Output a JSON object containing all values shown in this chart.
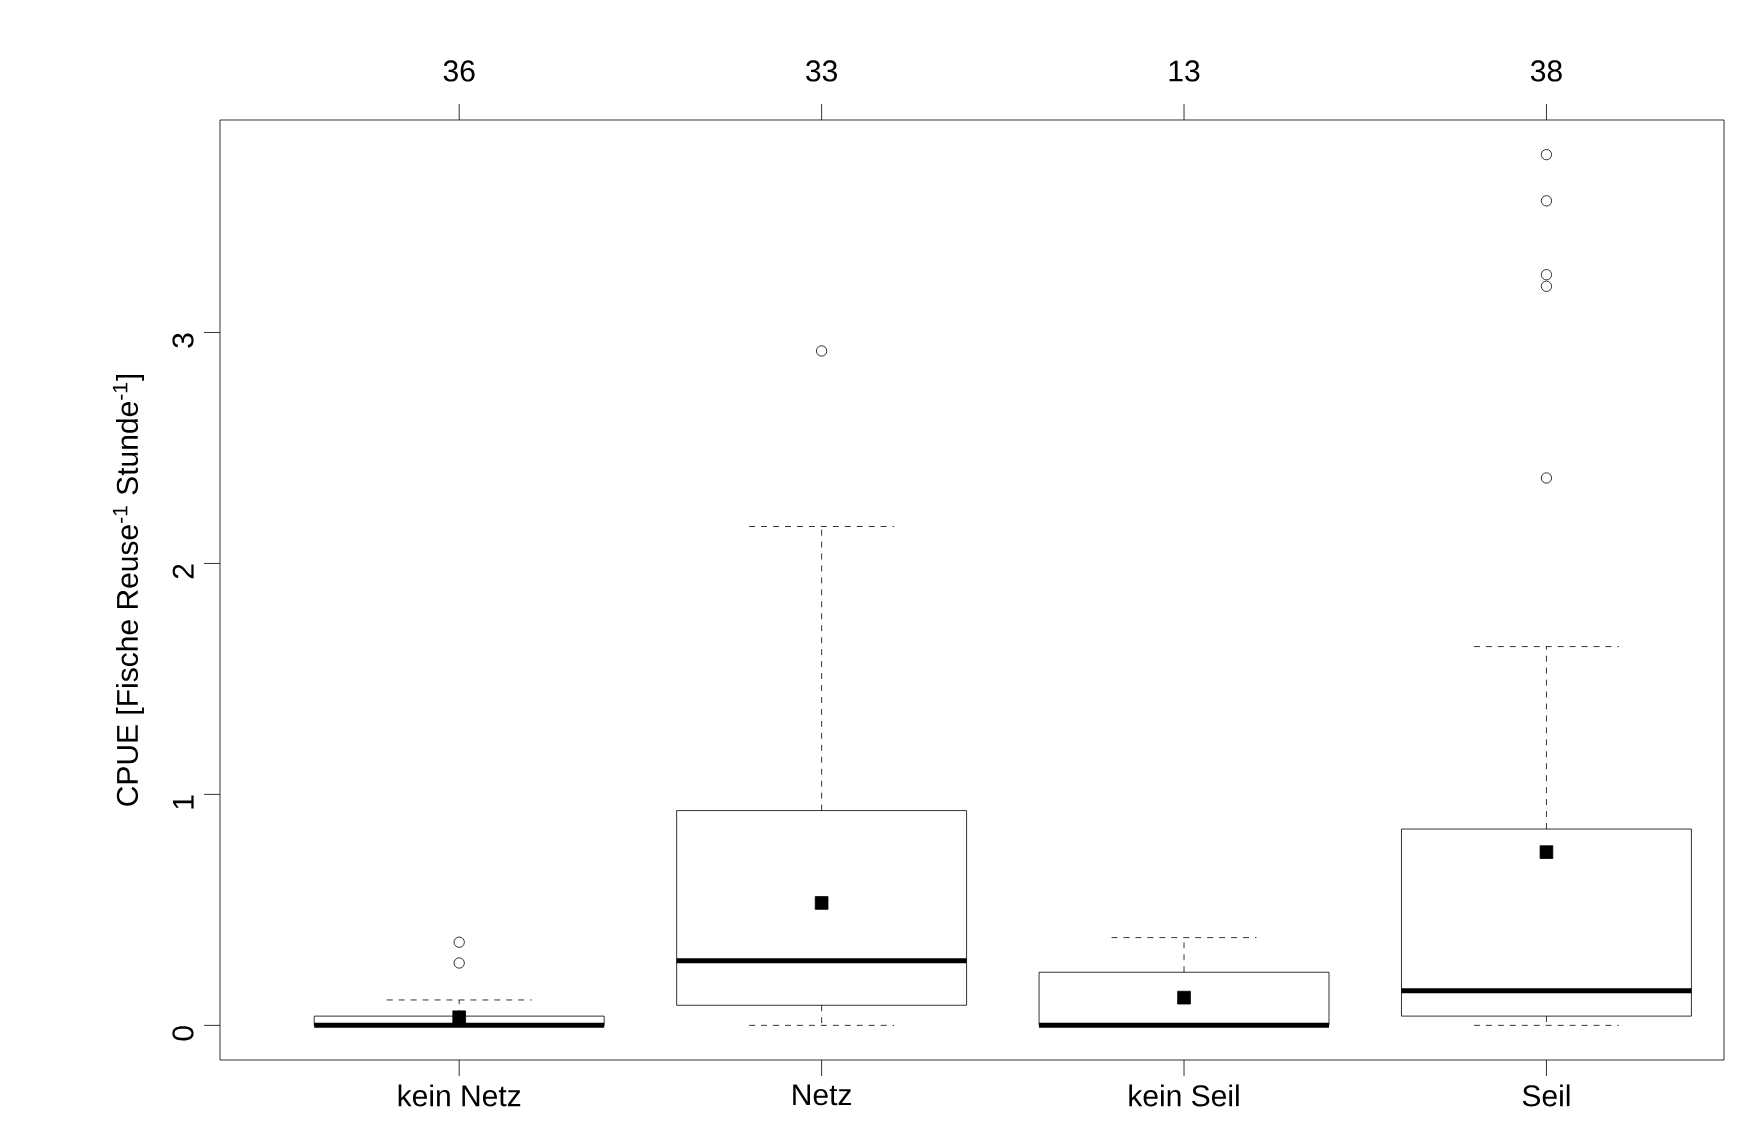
{
  "chart_data": {
    "type": "box",
    "ylabel": "CPUE [Fische Reuse$^{-1}$ Stunde$^{-1}$]",
    "categories": [
      "kein Netz",
      "Netz",
      "kein Seil",
      "Seil"
    ],
    "boxes": [
      {
        "low": 0,
        "q1": 0,
        "median": 0,
        "q3": 0.04,
        "high": 0.11,
        "mean": 0.035,
        "outliers": [
          0.36,
          0.27
        ]
      },
      {
        "low": 0,
        "q1": 0.087,
        "median": 0.28,
        "q3": 0.93,
        "high": 2.16,
        "mean": 0.53,
        "outliers": [
          2.92
        ]
      },
      {
        "low": 0,
        "q1": 0,
        "median": 0,
        "q3": 0.23,
        "high": 0.38,
        "mean": 0.12
      },
      {
        "low": 0,
        "q1": 0.04,
        "median": 0.15,
        "q3": 0.85,
        "high": 1.64,
        "mean": 0.75,
        "outliers": [
          2.37,
          3.2,
          3.25,
          3.57,
          3.77
        ]
      }
    ],
    "ylim": [
      -0.15,
      3.92
    ],
    "yticks": [
      0,
      1,
      2,
      3
    ],
    "annotations": [
      "36",
      "33",
      "13",
      "38"
    ]
  }
}
